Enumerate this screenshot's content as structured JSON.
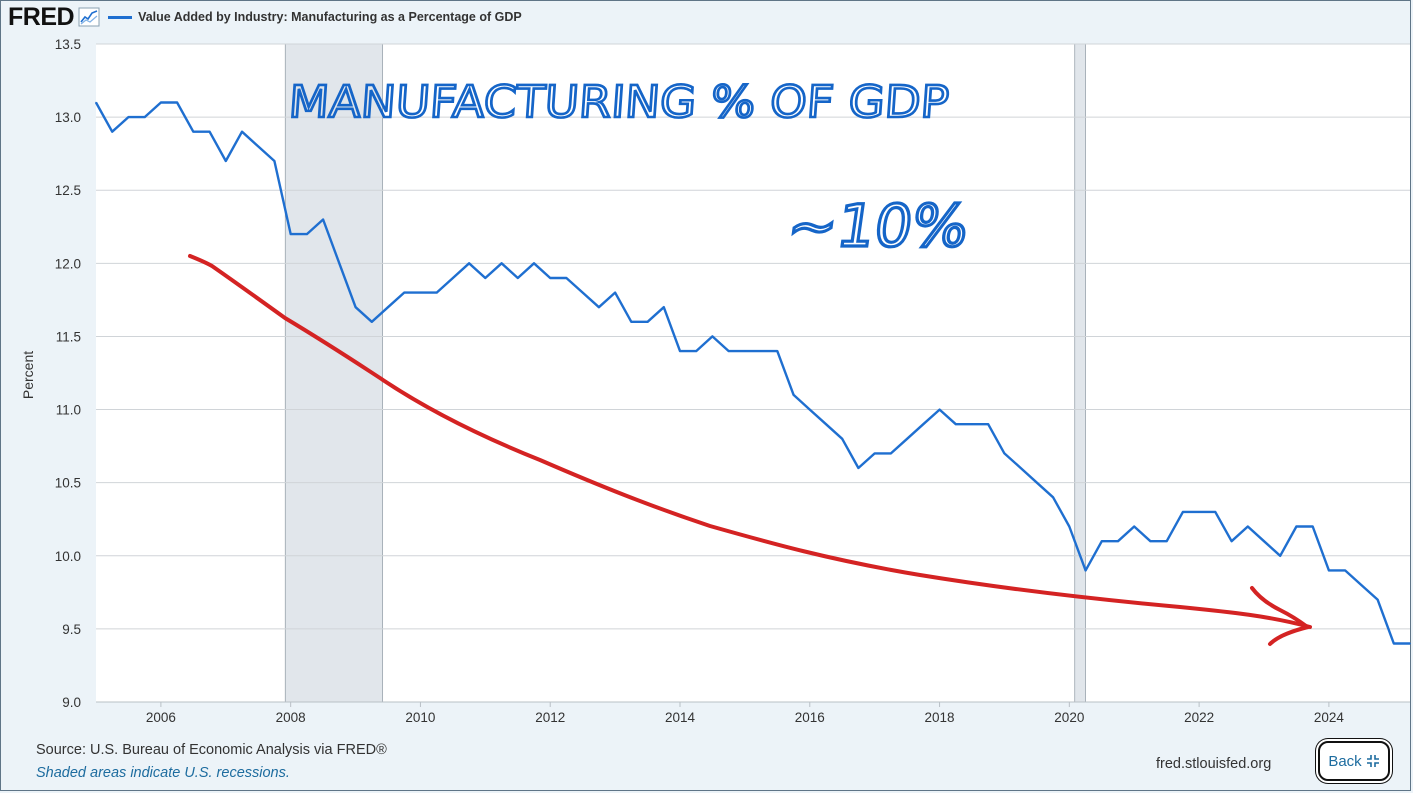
{
  "header": {
    "logo": "FRED",
    "logo_icon": "line-chart-icon",
    "legend_label": "Value Added by Industry: Manufacturing as a Percentage of GDP"
  },
  "footer": {
    "source": "Source: U.S. Bureau of Economic Analysis via FRED®",
    "note": "Shaded areas indicate U.S. recessions.",
    "site": "fred.stlouisfed.org",
    "back_label": "Back",
    "back_icon": "collapse-icon"
  },
  "colors": {
    "series": "#1f6fd0",
    "recession": "#e1e6eb",
    "annotation_blue": "#1565c8",
    "annotation_red": "#d42323"
  },
  "annotations": {
    "handwritten_title": "MANUFACTURING % OF GDP",
    "handwritten_value": "~10%"
  },
  "chart_data": {
    "type": "line",
    "title": "Value Added by Industry: Manufacturing as a Percentage of GDP",
    "xlabel": "",
    "ylabel": "Percent",
    "xlim": [
      2005.0,
      2025.25
    ],
    "ylim": [
      9.0,
      13.5
    ],
    "yticks": [
      "9.0",
      "9.5",
      "10.0",
      "10.5",
      "11.0",
      "11.5",
      "12.0",
      "12.5",
      "13.0",
      "13.5"
    ],
    "xticks": [
      "2006",
      "2008",
      "2010",
      "2012",
      "2014",
      "2016",
      "2018",
      "2020",
      "2022",
      "2024"
    ],
    "grid": true,
    "recessions": [
      [
        2007.917,
        2009.417
      ],
      [
        2020.083,
        2020.25
      ]
    ],
    "series": [
      {
        "name": "Value Added by Industry: Manufacturing as a Percentage of GDP",
        "x": [
          2005.0,
          2005.25,
          2005.5,
          2005.75,
          2006.0,
          2006.25,
          2006.5,
          2006.75,
          2007.0,
          2007.25,
          2007.5,
          2007.75,
          2008.0,
          2008.25,
          2008.5,
          2008.75,
          2009.0,
          2009.25,
          2009.5,
          2009.75,
          2010.0,
          2010.25,
          2010.5,
          2010.75,
          2011.0,
          2011.25,
          2011.5,
          2011.75,
          2012.0,
          2012.25,
          2012.5,
          2012.75,
          2013.0,
          2013.25,
          2013.5,
          2013.75,
          2014.0,
          2014.25,
          2014.5,
          2014.75,
          2015.0,
          2015.25,
          2015.5,
          2015.75,
          2016.0,
          2016.25,
          2016.5,
          2016.75,
          2017.0,
          2017.25,
          2017.5,
          2017.75,
          2018.0,
          2018.25,
          2018.5,
          2018.75,
          2019.0,
          2019.25,
          2019.5,
          2019.75,
          2020.0,
          2020.25,
          2020.5,
          2020.75,
          2021.0,
          2021.25,
          2021.5,
          2021.75,
          2022.0,
          2022.25,
          2022.5,
          2022.75,
          2023.0,
          2023.25,
          2023.5,
          2023.75,
          2024.0,
          2024.25,
          2024.5,
          2024.75,
          2025.0,
          2025.25
        ],
        "values": [
          13.1,
          12.9,
          13.0,
          13.0,
          13.1,
          13.1,
          12.9,
          12.9,
          12.7,
          12.9,
          12.8,
          12.7,
          12.2,
          12.2,
          12.3,
          12.0,
          11.7,
          11.6,
          11.7,
          11.8,
          11.8,
          11.8,
          11.9,
          12.0,
          11.9,
          12.0,
          11.9,
          12.0,
          11.9,
          11.9,
          11.8,
          11.7,
          11.8,
          11.6,
          11.6,
          11.7,
          11.4,
          11.4,
          11.5,
          11.4,
          11.4,
          11.4,
          11.4,
          11.1,
          11.0,
          10.9,
          10.8,
          10.6,
          10.7,
          10.7,
          10.8,
          10.9,
          11.0,
          10.9,
          10.9,
          10.9,
          10.7,
          10.6,
          10.5,
          10.4,
          10.2,
          9.9,
          10.1,
          10.1,
          10.2,
          10.1,
          10.1,
          10.3,
          10.3,
          10.3,
          10.1,
          10.2,
          10.1,
          10.0,
          10.2,
          10.2,
          9.9,
          9.9,
          9.8,
          9.7,
          9.4,
          9.4
        ]
      }
    ]
  }
}
